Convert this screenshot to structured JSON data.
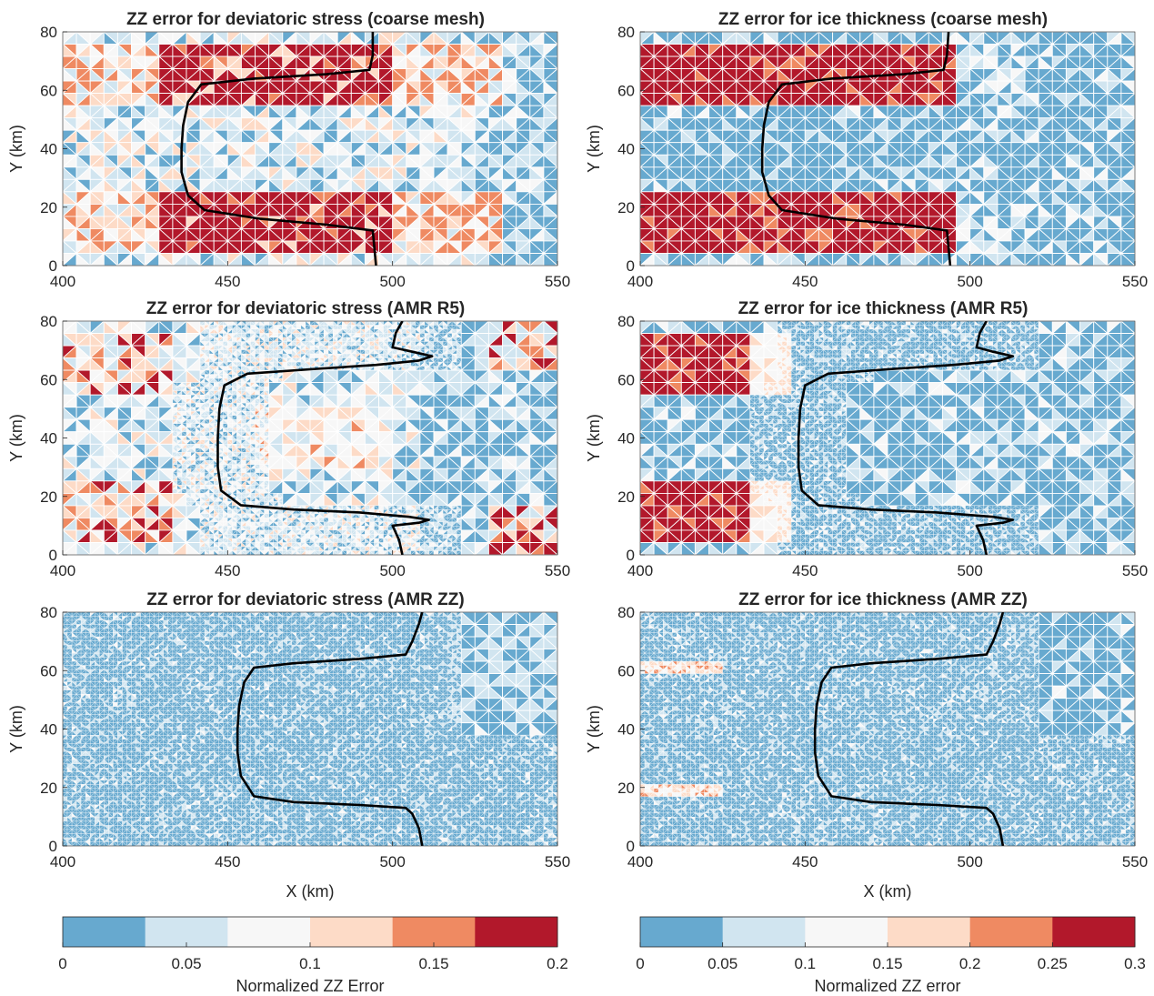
{
  "chart_data": [
    {
      "type": "heatmap",
      "title": "ZZ error for deviatoric stress (coarse mesh)",
      "ylabel": "Y (km)",
      "xlabel": "",
      "xlim": [
        400,
        550
      ],
      "ylim": [
        0,
        80
      ],
      "xticks": [
        "400",
        "450",
        "500",
        "550"
      ],
      "yticks": [
        "0",
        "20",
        "40",
        "60",
        "80"
      ],
      "colormap": "stress",
      "field": "stress",
      "mesh": "coarse",
      "front_variant": "coarse",
      "grounding_line": [
        [
          495,
          0
        ],
        [
          494.5,
          6
        ],
        [
          494,
          12
        ],
        [
          480,
          14
        ],
        [
          460,
          16
        ],
        [
          443,
          19
        ],
        [
          438,
          24
        ],
        [
          436,
          32
        ],
        [
          436,
          40
        ],
        [
          436.5,
          48
        ],
        [
          438,
          56
        ],
        [
          442,
          62
        ],
        [
          458,
          64
        ],
        [
          480,
          65.5
        ],
        [
          493,
          67
        ],
        [
          494,
          72
        ],
        [
          494,
          80
        ]
      ]
    },
    {
      "type": "heatmap",
      "title": "ZZ error for ice thickness (coarse mesh)",
      "ylabel": "Y (km)",
      "xlabel": "",
      "xlim": [
        400,
        550
      ],
      "ylim": [
        0,
        80
      ],
      "xticks": [
        "400",
        "450",
        "500",
        "550"
      ],
      "yticks": [
        "0",
        "20",
        "40",
        "60",
        "80"
      ],
      "colormap": "thickness",
      "field": "thickness",
      "mesh": "coarse",
      "front_variant": "coarse",
      "grounding_line": [
        [
          494,
          0
        ],
        [
          493.5,
          6
        ],
        [
          493,
          12
        ],
        [
          480,
          14
        ],
        [
          460,
          16
        ],
        [
          443,
          19
        ],
        [
          439,
          24
        ],
        [
          437,
          32
        ],
        [
          437,
          40
        ],
        [
          437.5,
          48
        ],
        [
          439,
          56
        ],
        [
          443,
          62
        ],
        [
          458,
          64
        ],
        [
          480,
          65.5
        ],
        [
          492,
          67
        ],
        [
          493,
          72
        ],
        [
          493.5,
          80
        ]
      ]
    },
    {
      "type": "heatmap",
      "title": "ZZ error for deviatoric stress (AMR R5)",
      "ylabel": "Y (km)",
      "xlabel": "",
      "xlim": [
        400,
        550
      ],
      "ylim": [
        0,
        80
      ],
      "xticks": [
        "400",
        "450",
        "500",
        "550"
      ],
      "yticks": [
        "0",
        "20",
        "40",
        "60",
        "80"
      ],
      "colormap": "stress",
      "field": "stress",
      "mesh": "r5",
      "front_variant": "r5",
      "grounding_line": [
        [
          503,
          0
        ],
        [
          502,
          5
        ],
        [
          500,
          10
        ],
        [
          508,
          11
        ],
        [
          511,
          12
        ],
        [
          505,
          13
        ],
        [
          490,
          14.5
        ],
        [
          470,
          15.5
        ],
        [
          454,
          17
        ],
        [
          448,
          22
        ],
        [
          447,
          30
        ],
        [
          447,
          40
        ],
        [
          447.5,
          50
        ],
        [
          449,
          58
        ],
        [
          456,
          62
        ],
        [
          475,
          63.5
        ],
        [
          495,
          65
        ],
        [
          508,
          66.5
        ],
        [
          512,
          68
        ],
        [
          506,
          69.5
        ],
        [
          500,
          71
        ],
        [
          501,
          76
        ],
        [
          503,
          80
        ]
      ]
    },
    {
      "type": "heatmap",
      "title": "ZZ error for ice thickness (AMR R5)",
      "ylabel": "Y (km)",
      "xlabel": "",
      "xlim": [
        400,
        550
      ],
      "ylim": [
        0,
        80
      ],
      "xticks": [
        "400",
        "450",
        "500",
        "550"
      ],
      "yticks": [
        "0",
        "20",
        "40",
        "60",
        "80"
      ],
      "colormap": "thickness",
      "field": "thickness",
      "mesh": "r5",
      "front_variant": "r5",
      "grounding_line": [
        [
          505,
          0
        ],
        [
          504,
          5
        ],
        [
          502,
          10
        ],
        [
          510,
          11
        ],
        [
          513,
          12
        ],
        [
          507,
          13
        ],
        [
          490,
          14.5
        ],
        [
          470,
          15.5
        ],
        [
          454,
          17
        ],
        [
          449,
          22
        ],
        [
          448,
          30
        ],
        [
          448,
          40
        ],
        [
          448.5,
          50
        ],
        [
          450,
          58
        ],
        [
          457,
          62
        ],
        [
          475,
          63.5
        ],
        [
          495,
          65
        ],
        [
          509,
          66.5
        ],
        [
          513,
          68
        ],
        [
          507,
          69.5
        ],
        [
          502,
          71
        ],
        [
          503,
          76
        ],
        [
          505,
          80
        ]
      ]
    },
    {
      "type": "heatmap",
      "title": "ZZ error for deviatoric stress (AMR ZZ)",
      "ylabel": "Y (km)",
      "xlabel": "X (km)",
      "xlim": [
        400,
        550
      ],
      "ylim": [
        0,
        80
      ],
      "xticks": [
        "400",
        "450",
        "500",
        "550"
      ],
      "yticks": [
        "0",
        "20",
        "40",
        "60",
        "80"
      ],
      "colormap": "stress",
      "field": "stress",
      "mesh": "zz",
      "front_variant": "zz",
      "grounding_line": [
        [
          509,
          0
        ],
        [
          508,
          6
        ],
        [
          506,
          11
        ],
        [
          504,
          13
        ],
        [
          490,
          14
        ],
        [
          470,
          15
        ],
        [
          458,
          17
        ],
        [
          454,
          24
        ],
        [
          453,
          32
        ],
        [
          453,
          40
        ],
        [
          453.5,
          48
        ],
        [
          455,
          56
        ],
        [
          458,
          61
        ],
        [
          470,
          62.5
        ],
        [
          490,
          64
        ],
        [
          504,
          65.5
        ],
        [
          506,
          70
        ],
        [
          508,
          76
        ],
        [
          509,
          80
        ]
      ]
    },
    {
      "type": "heatmap",
      "title": "ZZ error for ice thickness (AMR ZZ)",
      "ylabel": "Y (km)",
      "xlabel": "X (km)",
      "xlim": [
        400,
        550
      ],
      "ylim": [
        0,
        80
      ],
      "xticks": [
        "400",
        "450",
        "500",
        "550"
      ],
      "yticks": [
        "0",
        "20",
        "40",
        "60",
        "80"
      ],
      "colormap": "thickness",
      "field": "thickness",
      "mesh": "zz",
      "front_variant": "zz",
      "grounding_line": [
        [
          510,
          0
        ],
        [
          509,
          6
        ],
        [
          507,
          11
        ],
        [
          505,
          13
        ],
        [
          490,
          14
        ],
        [
          470,
          15
        ],
        [
          458,
          17
        ],
        [
          454,
          24
        ],
        [
          453,
          32
        ],
        [
          453,
          40
        ],
        [
          453.5,
          48
        ],
        [
          455,
          56
        ],
        [
          458,
          61
        ],
        [
          470,
          62.5
        ],
        [
          490,
          64
        ],
        [
          505,
          65.5
        ],
        [
          507,
          70
        ],
        [
          509,
          76
        ],
        [
          510,
          80
        ]
      ]
    }
  ],
  "colorbars": [
    {
      "label": "Normalized ZZ Error",
      "ticks": [
        "0",
        "0.05",
        "0.1",
        "0.15",
        "0.2"
      ],
      "range": [
        0,
        0.2
      ],
      "colors": [
        "#67a9cf",
        "#d1e5f0",
        "#f7f7f7",
        "#fddbc7",
        "#ef8a62",
        "#b2182b"
      ]
    },
    {
      "label": "Normalized ZZ error",
      "ticks": [
        "0",
        "0.05",
        "0.1",
        "0.15",
        "0.2",
        "0.25",
        "0.3"
      ],
      "range": [
        0,
        0.3
      ],
      "colors": [
        "#67a9cf",
        "#d1e5f0",
        "#f7f7f7",
        "#fddbc7",
        "#ef8a62",
        "#b2182b"
      ]
    }
  ]
}
